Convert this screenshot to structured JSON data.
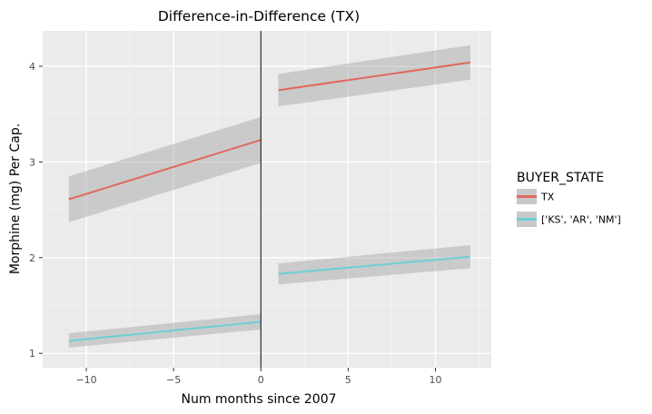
{
  "chart_data": {
    "type": "line",
    "title": "Difference-in-Difference (TX)",
    "xlabel": "Num months since 2007",
    "ylabel": "Morphine (mg) Per Cap.",
    "xlim": [
      -12.5,
      13.2
    ],
    "ylim": [
      0.85,
      4.37
    ],
    "x_ticks": [
      -10,
      -5,
      0,
      5,
      10
    ],
    "x_tick_labels": [
      "−10",
      "−5",
      "0",
      "5",
      "10"
    ],
    "y_ticks": [
      1,
      2,
      3,
      4
    ],
    "y_tick_labels": [
      "1",
      "2",
      "3",
      "4"
    ],
    "grid": true,
    "vline_x": 0,
    "legend": {
      "title": "BUYER_STATE",
      "placement": "right",
      "entries": [
        {
          "label": "TX",
          "color": "#e0695e"
        },
        {
          "label": "['KS', 'AR', 'NM']",
          "color": "#6dcfd3"
        }
      ]
    },
    "series": [
      {
        "name": "TX",
        "color": "#e0695e",
        "segments": [
          {
            "x": [
              -11,
              0
            ],
            "y": [
              2.61,
              3.23
            ],
            "lower": [
              2.37,
              2.99
            ],
            "upper": [
              2.85,
              3.47
            ]
          },
          {
            "x": [
              1,
              12
            ],
            "y": [
              3.75,
              4.04
            ],
            "lower": [
              3.58,
              3.86
            ],
            "upper": [
              3.92,
              4.22
            ]
          }
        ]
      },
      {
        "name": "['KS', 'AR', 'NM']",
        "color": "#6dcfd3",
        "segments": [
          {
            "x": [
              -11,
              0
            ],
            "y": [
              1.13,
              1.33
            ],
            "lower": [
              1.06,
              1.25
            ],
            "upper": [
              1.21,
              1.41
            ]
          },
          {
            "x": [
              1,
              12
            ],
            "y": [
              1.83,
              2.01
            ],
            "lower": [
              1.72,
              1.89
            ],
            "upper": [
              1.94,
              2.13
            ]
          }
        ]
      }
    ]
  }
}
